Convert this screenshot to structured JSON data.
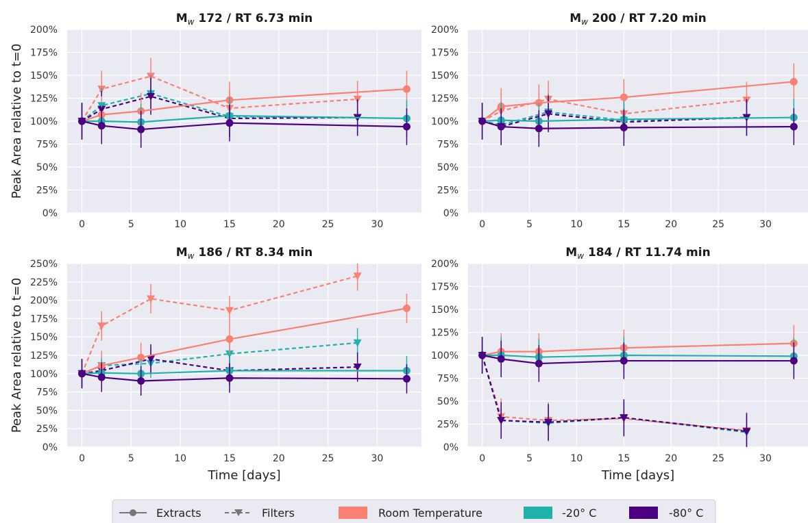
{
  "legend": {
    "extracts": "Extracts",
    "filters": "Filters",
    "rt": "Room Temperature",
    "m20": "-20° C",
    "m80": "-80° C"
  },
  "colors": {
    "rt": "#fa8072",
    "m20": "#20b2aa",
    "m80": "#4b0082",
    "panel_bg": "#eaeaf2",
    "grid": "#ffffff"
  },
  "chart_data": [
    {
      "type": "line",
      "title_main": "M",
      "title_sub": "w",
      "title_rest": " 172 / RT 6.73 min",
      "xlabel": "",
      "ylabel": "Peak Area relative to t=0",
      "xlim": [
        -1.5,
        34.5
      ],
      "ylim": [
        0,
        200
      ],
      "xticks": [
        0,
        5,
        10,
        15,
        20,
        25,
        30
      ],
      "yticks": [
        0,
        25,
        50,
        75,
        100,
        125,
        150,
        175,
        200
      ],
      "series": [
        {
          "kind": "filters",
          "temp": "rt",
          "x": [
            0,
            2,
            7,
            15,
            28
          ],
          "y": [
            100,
            135,
            149,
            114,
            124
          ],
          "err": [
            20,
            20,
            20,
            20,
            20
          ]
        },
        {
          "kind": "filters",
          "temp": "m20",
          "x": [
            0,
            2,
            7,
            15,
            28
          ],
          "y": [
            100,
            117,
            130,
            105,
            104
          ],
          "err": [
            20,
            20,
            20,
            20,
            20
          ]
        },
        {
          "kind": "filters",
          "temp": "m80",
          "x": [
            0,
            2,
            7,
            15,
            28
          ],
          "y": [
            100,
            113,
            127,
            103,
            104
          ],
          "err": [
            20,
            20,
            20,
            20,
            20
          ]
        },
        {
          "kind": "extracts",
          "temp": "rt",
          "x": [
            0,
            2,
            6,
            15,
            33
          ],
          "y": [
            100,
            107,
            111,
            123,
            135
          ],
          "err": [
            20,
            20,
            20,
            20,
            20
          ]
        },
        {
          "kind": "extracts",
          "temp": "m20",
          "x": [
            0,
            2,
            6,
            15,
            33
          ],
          "y": [
            100,
            100,
            99,
            106,
            103
          ],
          "err": [
            20,
            20,
            20,
            20,
            20
          ]
        },
        {
          "kind": "extracts",
          "temp": "m80",
          "x": [
            0,
            2,
            6,
            15,
            33
          ],
          "y": [
            100,
            95,
            91,
            98,
            94
          ],
          "err": [
            20,
            20,
            20,
            20,
            20
          ]
        }
      ]
    },
    {
      "type": "line",
      "title_main": "M",
      "title_sub": "w",
      "title_rest": " 200 / RT 7.20 min",
      "xlabel": "",
      "ylabel": "",
      "xlim": [
        -1.5,
        34.5
      ],
      "ylim": [
        0,
        200
      ],
      "xticks": [
        0,
        5,
        10,
        15,
        20,
        25,
        30
      ],
      "yticks": [
        0,
        25,
        50,
        75,
        100,
        125,
        150,
        175,
        200
      ],
      "series": [
        {
          "kind": "filters",
          "temp": "rt",
          "x": [
            0,
            2,
            7,
            15,
            28
          ],
          "y": [
            100,
            111,
            124,
            108,
            123
          ],
          "err": [
            20,
            20,
            20,
            20,
            20
          ]
        },
        {
          "kind": "filters",
          "temp": "m20",
          "x": [
            0,
            2,
            7,
            15,
            28
          ],
          "y": [
            100,
            96,
            110,
            101,
            104
          ],
          "err": [
            20,
            20,
            20,
            20,
            20
          ]
        },
        {
          "kind": "filters",
          "temp": "m80",
          "x": [
            0,
            2,
            7,
            15,
            28
          ],
          "y": [
            100,
            94,
            108,
            99,
            104
          ],
          "err": [
            20,
            20,
            20,
            20,
            20
          ]
        },
        {
          "kind": "extracts",
          "temp": "rt",
          "x": [
            0,
            2,
            6,
            15,
            33
          ],
          "y": [
            100,
            116,
            120,
            126,
            143
          ],
          "err": [
            20,
            20,
            20,
            20,
            20
          ]
        },
        {
          "kind": "extracts",
          "temp": "m20",
          "x": [
            0,
            2,
            6,
            15,
            33
          ],
          "y": [
            100,
            101,
            100,
            102,
            104
          ],
          "err": [
            20,
            20,
            20,
            20,
            20
          ]
        },
        {
          "kind": "extracts",
          "temp": "m80",
          "x": [
            0,
            2,
            6,
            15,
            33
          ],
          "y": [
            100,
            94,
            92,
            93,
            94
          ],
          "err": [
            20,
            20,
            20,
            20,
            20
          ]
        }
      ]
    },
    {
      "type": "line",
      "title_main": "M",
      "title_sub": "w",
      "title_rest": " 186 / RT 8.34 min",
      "xlabel": "Time [days]",
      "ylabel": "Peak Area relative to t=0",
      "xlim": [
        -1.5,
        34.5
      ],
      "ylim": [
        0,
        250
      ],
      "xticks": [
        0,
        5,
        10,
        15,
        20,
        25,
        30
      ],
      "yticks": [
        0,
        25,
        50,
        75,
        100,
        125,
        150,
        175,
        200,
        225,
        250
      ],
      "series": [
        {
          "kind": "filters",
          "temp": "rt",
          "x": [
            0,
            2,
            7,
            15,
            28
          ],
          "y": [
            100,
            165,
            202,
            186,
            233
          ],
          "err": [
            20,
            20,
            20,
            20,
            20
          ]
        },
        {
          "kind": "filters",
          "temp": "m20",
          "x": [
            0,
            2,
            7,
            15,
            28
          ],
          "y": [
            100,
            111,
            114,
            127,
            142
          ],
          "err": [
            20,
            20,
            20,
            20,
            20
          ]
        },
        {
          "kind": "filters",
          "temp": "m80",
          "x": [
            0,
            2,
            7,
            15,
            28
          ],
          "y": [
            100,
            104,
            120,
            104,
            109
          ],
          "err": [
            20,
            20,
            20,
            20,
            20
          ]
        },
        {
          "kind": "extracts",
          "temp": "rt",
          "x": [
            0,
            2,
            6,
            15,
            33
          ],
          "y": [
            100,
            111,
            122,
            147,
            189
          ],
          "err": [
            20,
            20,
            20,
            20,
            20
          ]
        },
        {
          "kind": "extracts",
          "temp": "m20",
          "x": [
            0,
            2,
            6,
            15,
            33
          ],
          "y": [
            100,
            101,
            100,
            104,
            104
          ],
          "err": [
            20,
            20,
            20,
            20,
            20
          ]
        },
        {
          "kind": "extracts",
          "temp": "m80",
          "x": [
            0,
            2,
            6,
            15,
            33
          ],
          "y": [
            100,
            95,
            90,
            94,
            93
          ],
          "err": [
            20,
            20,
            20,
            20,
            20
          ]
        }
      ]
    },
    {
      "type": "line",
      "title_main": "M",
      "title_sub": "w",
      "title_rest": " 184 / RT 11.74 min",
      "xlabel": "Time [days]",
      "ylabel": "",
      "xlim": [
        -1.5,
        34.5
      ],
      "ylim": [
        0,
        200
      ],
      "xticks": [
        0,
        5,
        10,
        15,
        20,
        25,
        30
      ],
      "yticks": [
        0,
        25,
        50,
        75,
        100,
        125,
        150,
        175,
        200
      ],
      "series": [
        {
          "kind": "filters",
          "temp": "rt",
          "x": [
            0,
            2,
            7,
            15,
            28
          ],
          "y": [
            100,
            33,
            29,
            31,
            18
          ],
          "err": [
            20,
            20,
            20,
            20,
            20
          ]
        },
        {
          "kind": "filters",
          "temp": "m20",
          "x": [
            0,
            2,
            7,
            15,
            28
          ],
          "y": [
            100,
            29,
            26,
            32,
            16
          ],
          "err": [
            20,
            20,
            20,
            20,
            20
          ]
        },
        {
          "kind": "filters",
          "temp": "m80",
          "x": [
            0,
            2,
            7,
            15,
            28
          ],
          "y": [
            100,
            29,
            27,
            32,
            17
          ],
          "err": [
            20,
            20,
            20,
            20,
            20
          ]
        },
        {
          "kind": "extracts",
          "temp": "rt",
          "x": [
            0,
            2,
            6,
            15,
            33
          ],
          "y": [
            100,
            104,
            104,
            108,
            113
          ],
          "err": [
            20,
            20,
            20,
            20,
            20
          ]
        },
        {
          "kind": "extracts",
          "temp": "m20",
          "x": [
            0,
            2,
            6,
            15,
            33
          ],
          "y": [
            100,
            100,
            98,
            100,
            99
          ],
          "err": [
            20,
            20,
            20,
            20,
            20
          ]
        },
        {
          "kind": "extracts",
          "temp": "m80",
          "x": [
            0,
            2,
            6,
            15,
            33
          ],
          "y": [
            100,
            96,
            91,
            94,
            94
          ],
          "err": [
            20,
            20,
            20,
            20,
            20
          ]
        }
      ]
    }
  ]
}
